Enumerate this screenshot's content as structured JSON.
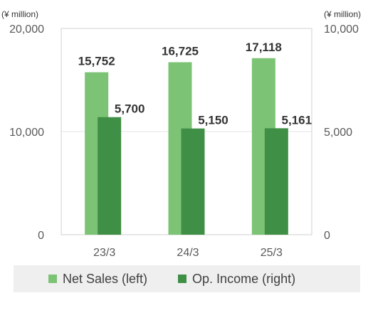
{
  "chart_data": {
    "type": "bar",
    "categories": [
      "23/3",
      "24/3",
      "25/3"
    ],
    "series": [
      {
        "name": "Net Sales (left)",
        "axis": "left",
        "color": "#7dc375",
        "values": [
          15752,
          16725,
          17118
        ],
        "labels": [
          "15,752",
          "16,725",
          "17,118"
        ]
      },
      {
        "name": "Op. Income (right)",
        "axis": "right",
        "color": "#3f8f46",
        "values": [
          5700,
          5150,
          5161
        ],
        "labels": [
          "5,700",
          "5,150",
          "5,161"
        ]
      }
    ],
    "left_axis": {
      "unit": "(¥ million)",
      "ylim": [
        0,
        20000
      ],
      "ticks": [
        0,
        10000,
        20000
      ],
      "tick_labels": [
        "0",
        "10,000",
        "20,000"
      ]
    },
    "right_axis": {
      "unit": "(¥ million)",
      "ylim": [
        0,
        10000
      ],
      "ticks": [
        0,
        5000,
        10000
      ],
      "tick_labels": [
        "0",
        "5,000",
        "10,000"
      ]
    },
    "grid": true,
    "legend_position": "bottom"
  }
}
